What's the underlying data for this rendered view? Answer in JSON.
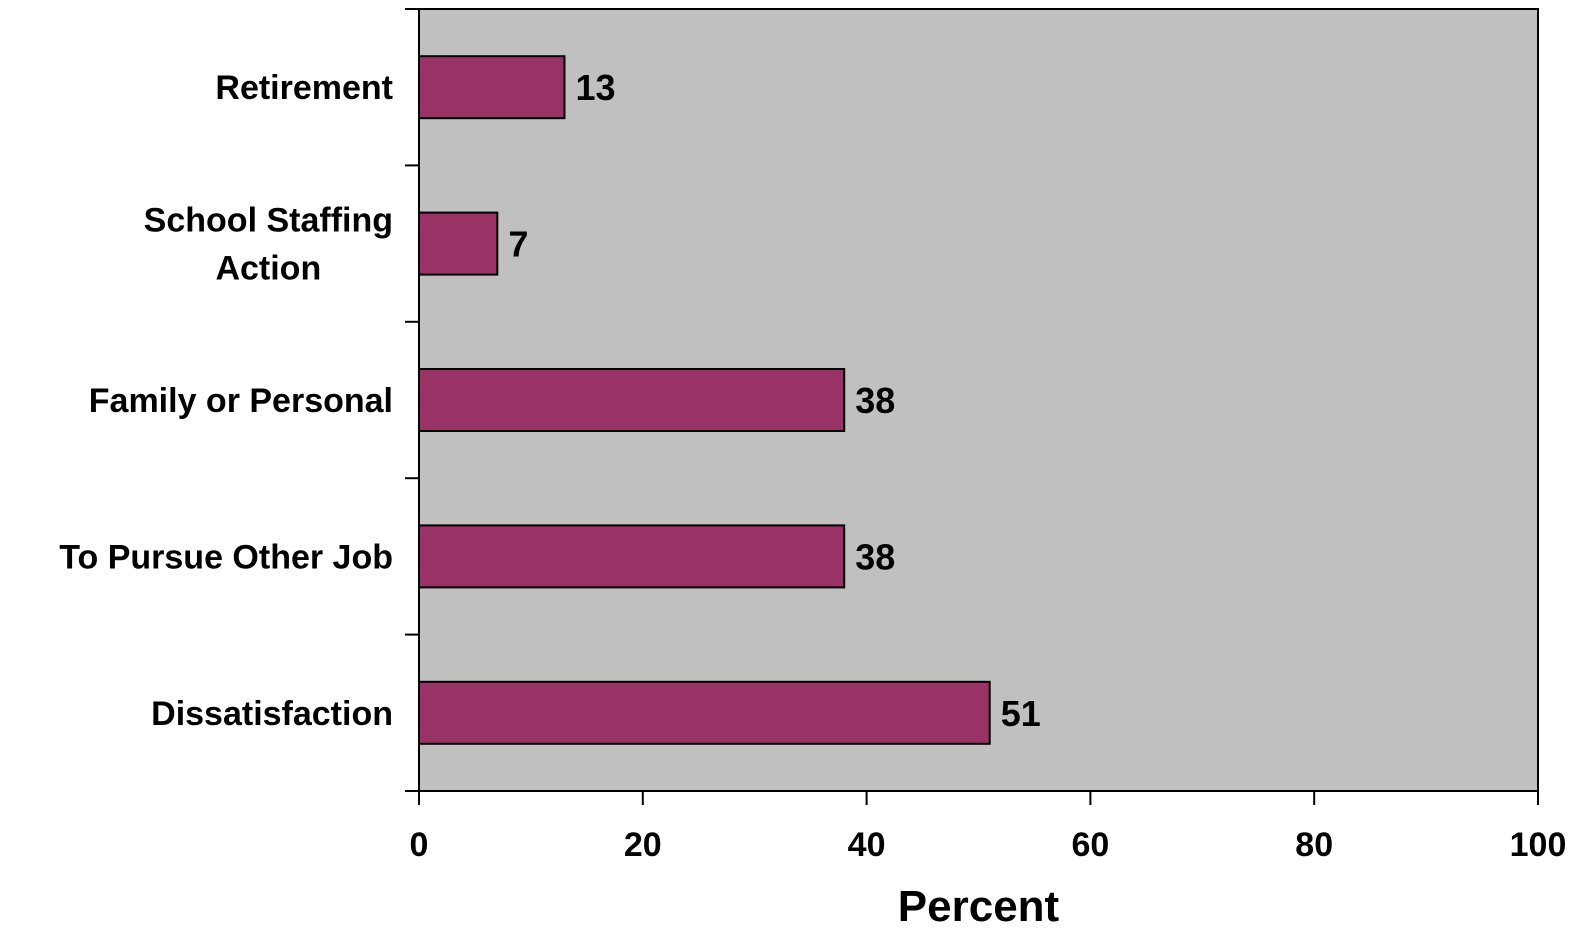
{
  "chart_data": {
    "type": "bar",
    "orientation": "horizontal",
    "title": "",
    "xlabel": "Percent",
    "ylabel": "",
    "categories": [
      [
        "Retirement"
      ],
      [
        "School Staffing",
        "Action"
      ],
      [
        "Family or Personal"
      ],
      [
        "To Pursue Other Job"
      ],
      [
        "Dissatisfaction"
      ]
    ],
    "values": [
      13,
      7,
      38,
      38,
      51
    ],
    "value_labels": [
      "13",
      "7",
      "38",
      "38",
      "51"
    ],
    "xlim": [
      0,
      100
    ],
    "xticks": [
      0,
      20,
      40,
      60,
      80,
      100
    ],
    "xtick_labels": [
      "0",
      "20",
      "40",
      "60",
      "80",
      "100"
    ],
    "grid": false,
    "legend": "none",
    "colors": {
      "bar": "#993366",
      "plot_background": "#c0c0c0",
      "axis": "#000000"
    }
  }
}
